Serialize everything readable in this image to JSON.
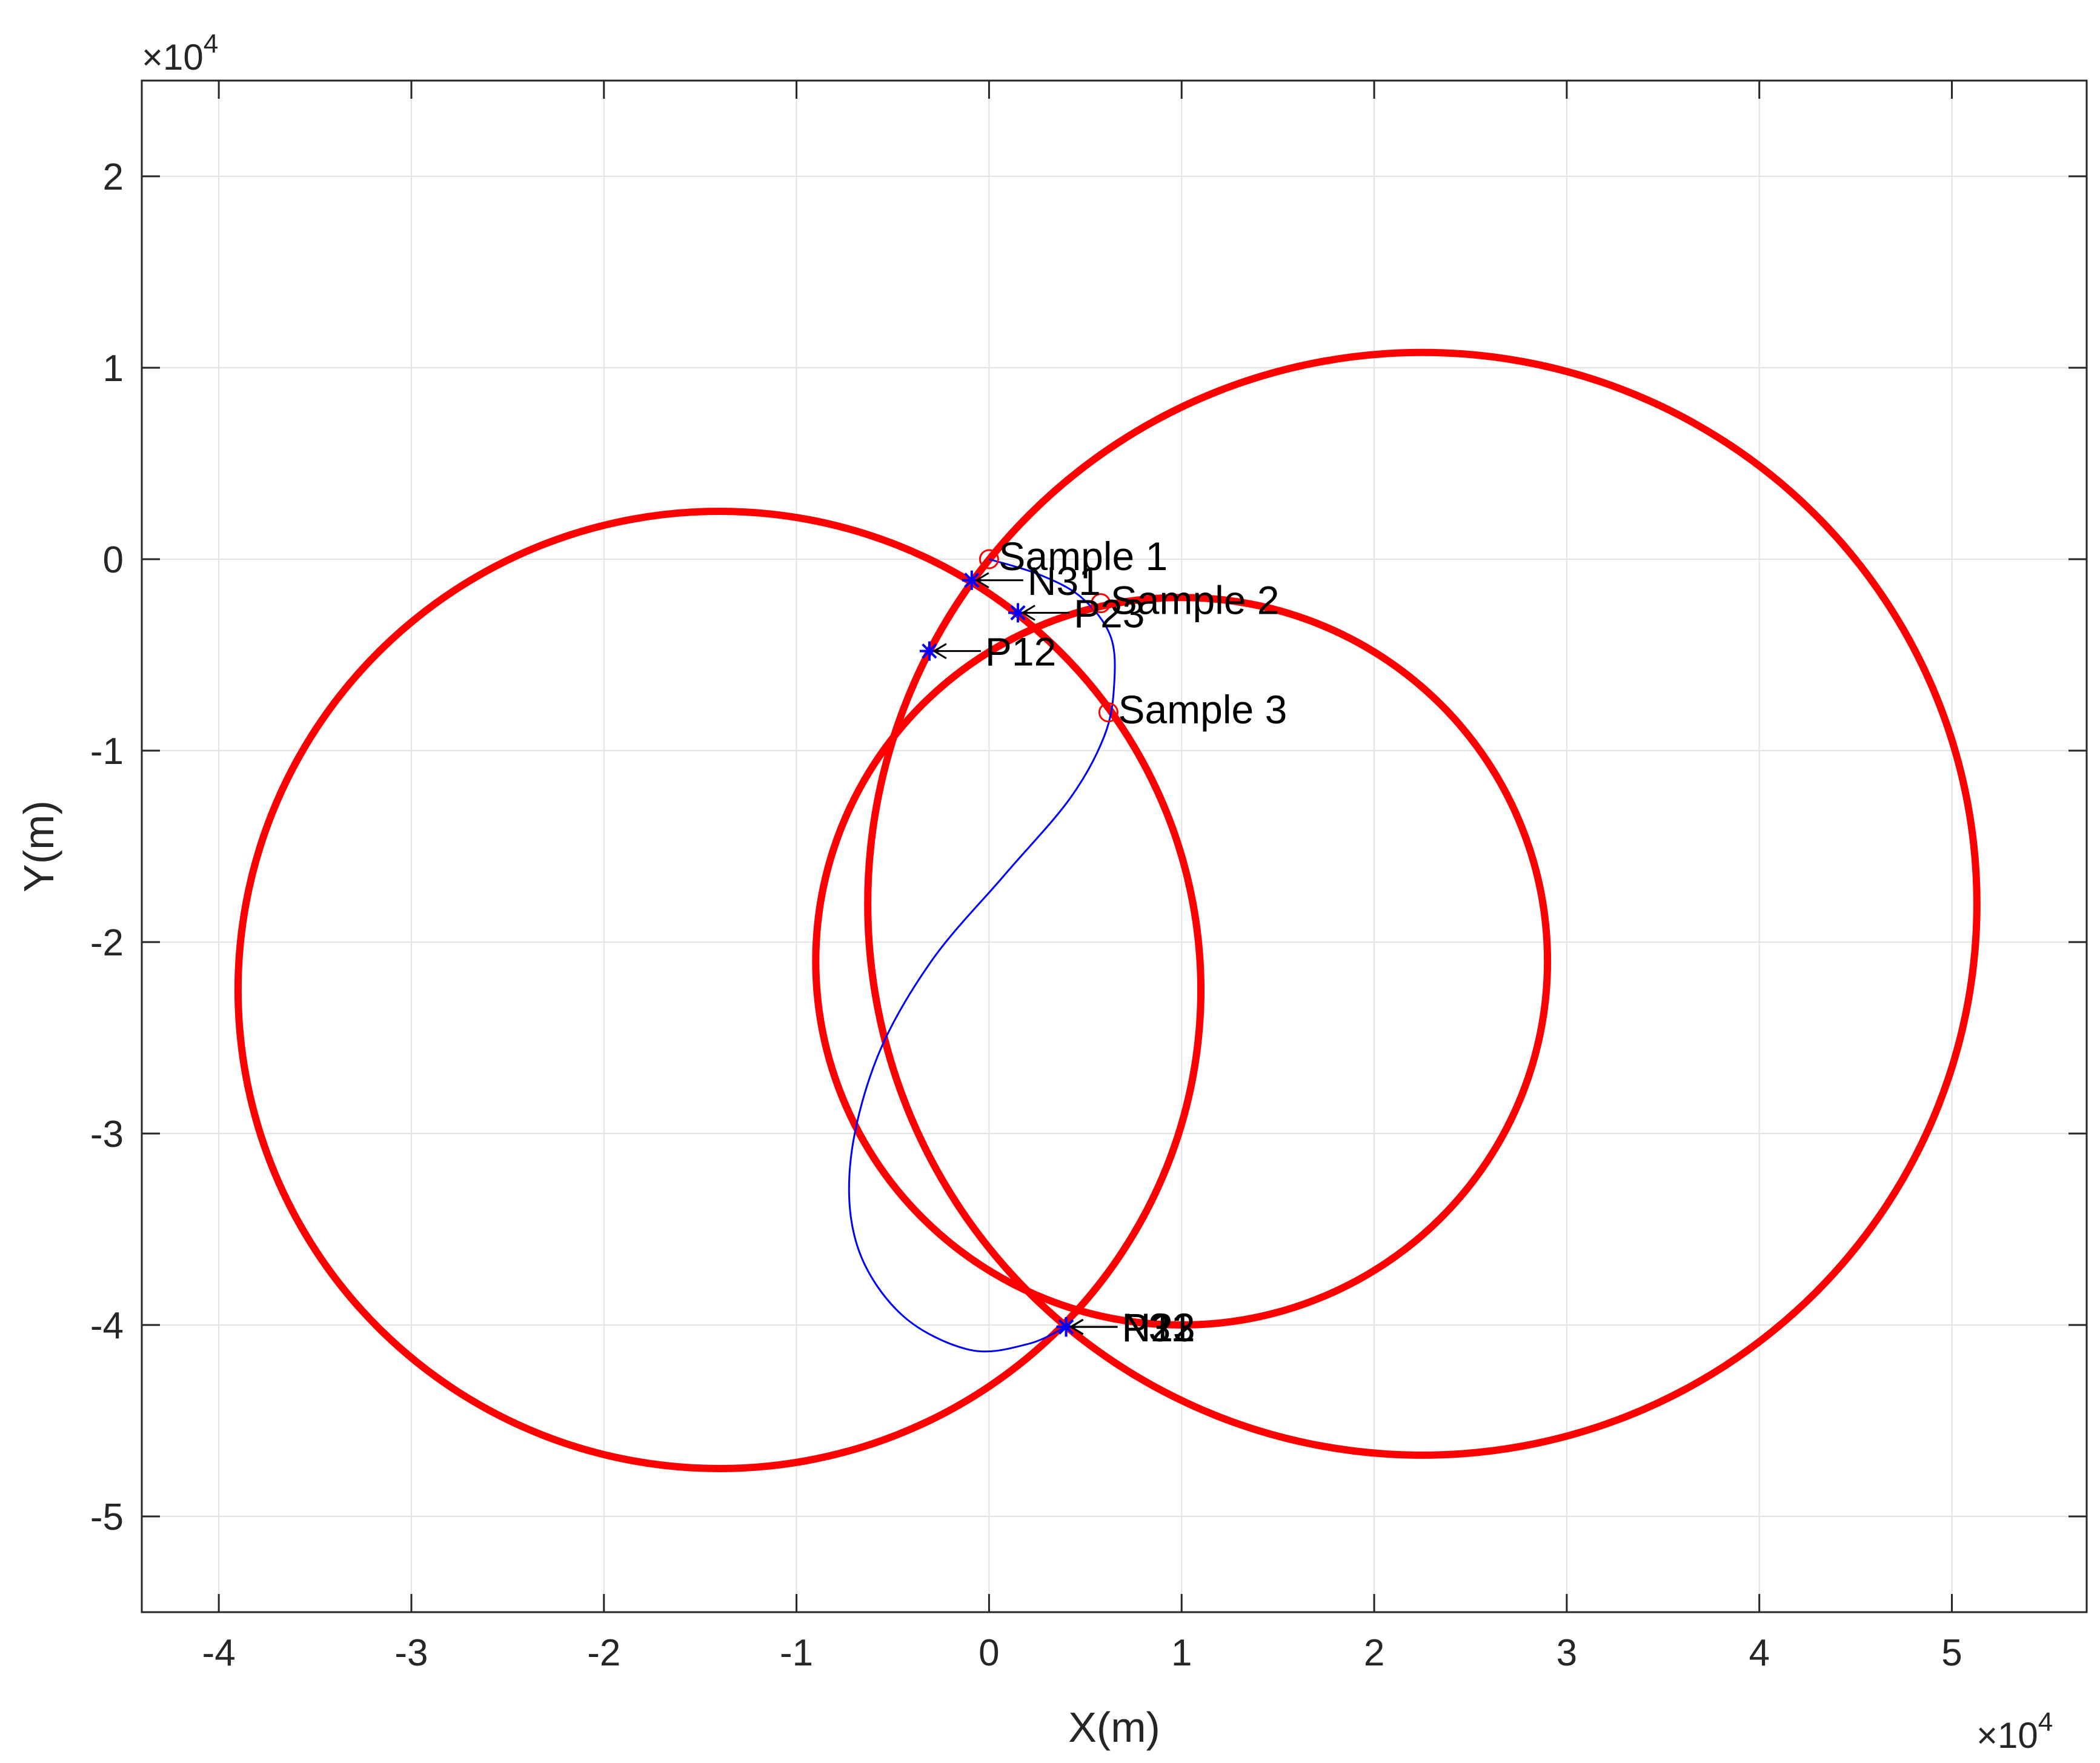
{
  "chart_data": {
    "type": "scatter",
    "xlabel": "X(m)",
    "ylabel": "Y(m)",
    "x_multiplier_label": "×10",
    "y_multiplier_label": "×10",
    "multiplier_exponent": "4",
    "xlim": [
      -44000,
      57000
    ],
    "ylim": [
      -55000,
      25000
    ],
    "grid": true,
    "x_ticks": [
      -40000,
      -30000,
      -20000,
      -10000,
      0,
      10000,
      20000,
      30000,
      40000,
      50000
    ],
    "y_ticks": [
      -50000,
      -40000,
      -30000,
      -20000,
      -10000,
      0,
      10000,
      20000
    ],
    "x_tick_labels": [
      "-4",
      "-3",
      "-2",
      "-1",
      "0",
      "1",
      "2",
      "3",
      "4",
      "5"
    ],
    "y_tick_labels": [
      "-5",
      "-4",
      "-3",
      "-2",
      "-1",
      "0",
      "1",
      "2"
    ],
    "circles": [
      {
        "cx": -14000,
        "cy": -22500,
        "r": 25000,
        "color": "#ff0000"
      },
      {
        "cx": 22500,
        "cy": -18000,
        "r": 28800,
        "color": "#ff0000"
      },
      {
        "cx": 10000,
        "cy": -21000,
        "r": 19000,
        "color": "#ff0000"
      }
    ],
    "samples": [
      {
        "label": "Sample 1",
        "x": 0,
        "y": 0,
        "color": "#ff0000"
      },
      {
        "label": "Sample 2",
        "x": 5800,
        "y": -2300,
        "color": "#ff0000"
      },
      {
        "label": "Sample 3",
        "x": 6200,
        "y": -8000,
        "color": "#ff0000"
      }
    ],
    "intersections": [
      {
        "label": "N31",
        "x": -900,
        "y": -1100,
        "color": "#0000ff"
      },
      {
        "label": "P23",
        "x": 1500,
        "y": -2800,
        "color": "#0000ff"
      },
      {
        "label": "P12",
        "x": -3100,
        "y": -4800,
        "color": "#0000ff"
      },
      {
        "label": "N12",
        "x": 4000,
        "y": -40100,
        "color": "#0000ff"
      },
      {
        "label": "N23",
        "x": 4000,
        "y": -40100,
        "color": "#0000ff"
      },
      {
        "label": "P31",
        "x": 4000,
        "y": -40100,
        "color": "#0000ff"
      }
    ],
    "trajectory": {
      "color": "#0000ff",
      "points": [
        [
          0,
          0
        ],
        [
          2600,
          -800
        ],
        [
          4800,
          -2000
        ],
        [
          6300,
          -4000
        ],
        [
          6500,
          -6500
        ],
        [
          6000,
          -9200
        ],
        [
          4200,
          -12500
        ],
        [
          800,
          -16500
        ],
        [
          -3000,
          -21000
        ],
        [
          -5800,
          -26000
        ],
        [
          -7200,
          -31500
        ],
        [
          -6800,
          -36000
        ],
        [
          -4500,
          -39500
        ],
        [
          -1000,
          -41300
        ],
        [
          2000,
          -41000
        ],
        [
          4000,
          -40100
        ]
      ]
    }
  }
}
